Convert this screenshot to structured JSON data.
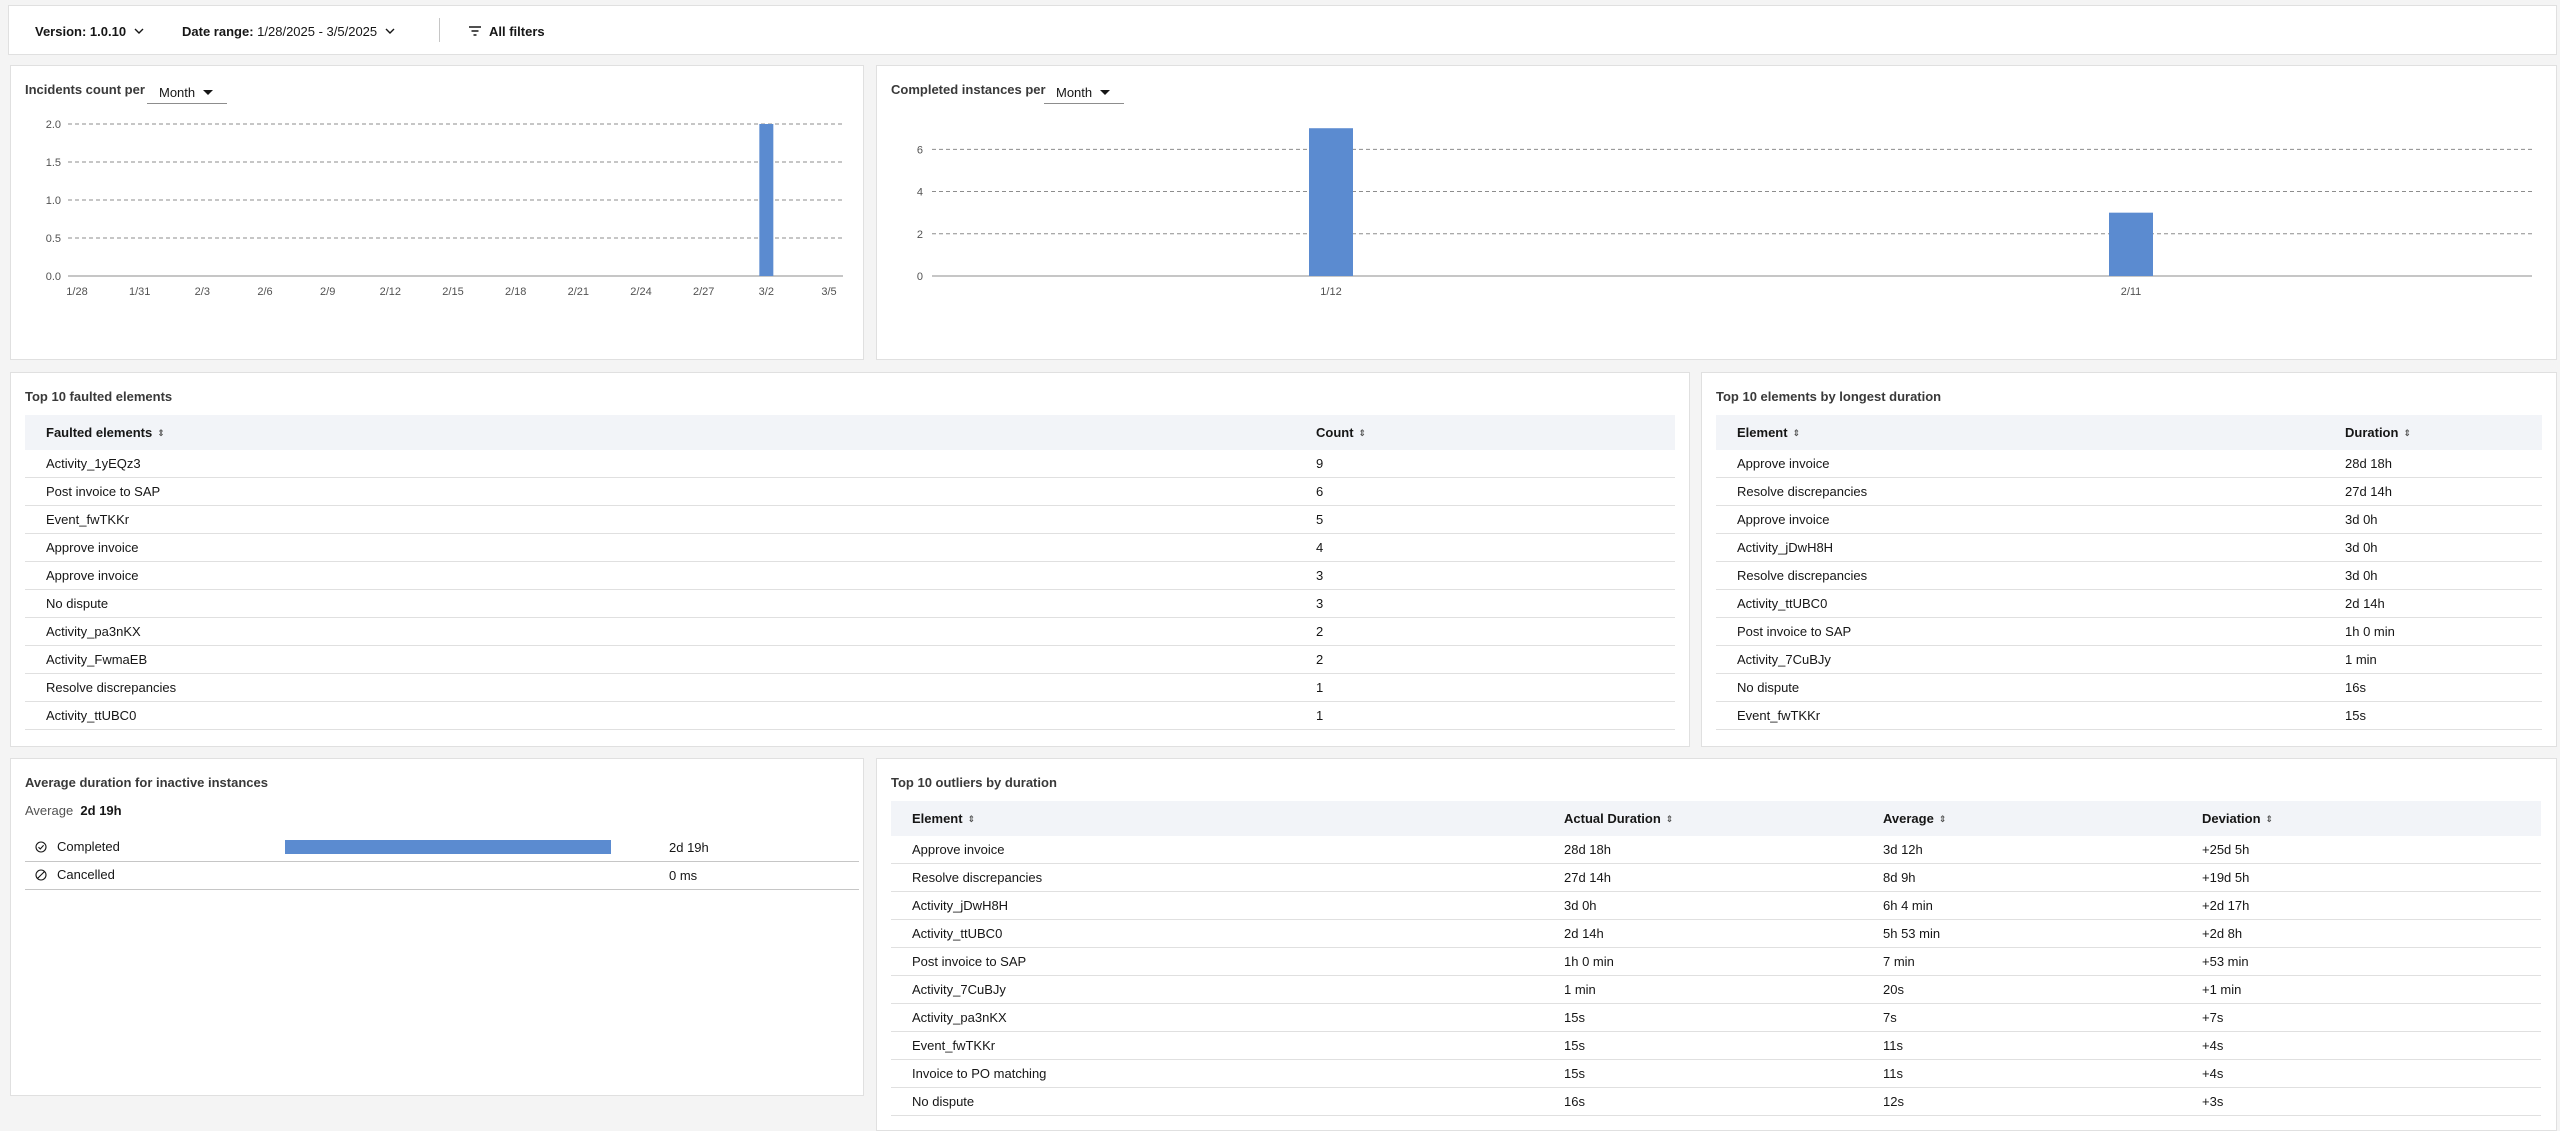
{
  "filters": {
    "version_label": "Version:",
    "version_value": "1.0.10",
    "date_label": "Date range:",
    "date_value": "1/28/2025 - 3/5/2025",
    "all_filters": "All filters"
  },
  "incidents": {
    "title": "Incidents count per",
    "period": "Month",
    "chart_data": {
      "type": "bar",
      "x_ticks": [
        "1/28",
        "1/31",
        "2/3",
        "2/6",
        "2/9",
        "2/12",
        "2/15",
        "2/18",
        "2/21",
        "2/24",
        "2/27",
        "3/2",
        "3/5"
      ],
      "y_ticks": [
        "2.0",
        "1.5",
        "1.0",
        "0.5",
        "0.0"
      ],
      "ylim": [
        0,
        2
      ],
      "bars": [
        {
          "x": "3/2",
          "value": 2
        }
      ],
      "color": "#5b8bd0"
    }
  },
  "completed": {
    "title": "Completed instances per",
    "period": "Month",
    "chart_data": {
      "type": "bar",
      "categories": [
        "1/12",
        "2/11"
      ],
      "values": [
        7,
        3
      ],
      "y_ticks": [
        "6",
        "4",
        "2",
        "0"
      ],
      "ylim": [
        0,
        7.2
      ],
      "color": "#5b8bd0"
    }
  },
  "faulted": {
    "title": "Top 10 faulted elements",
    "headers": [
      "Faulted elements",
      "Count"
    ],
    "rows": [
      [
        "Activity_1yEQz3",
        "9"
      ],
      [
        "Post invoice to SAP",
        "6"
      ],
      [
        "Event_fwTKKr",
        "5"
      ],
      [
        "Approve invoice",
        "4"
      ],
      [
        "Approve invoice",
        "3"
      ],
      [
        "No dispute",
        "3"
      ],
      [
        "Activity_pa3nKX",
        "2"
      ],
      [
        "Activity_FwmaEB",
        "2"
      ],
      [
        "Resolve discrepancies",
        "1"
      ],
      [
        "Activity_ttUBC0",
        "1"
      ]
    ]
  },
  "longest": {
    "title": "Top 10 elements by longest duration",
    "headers": [
      "Element",
      "Duration"
    ],
    "rows": [
      [
        "Approve invoice",
        "28d 18h"
      ],
      [
        "Resolve discrepancies",
        "27d 14h"
      ],
      [
        "Approve invoice",
        "3d 0h"
      ],
      [
        "Activity_jDwH8H",
        "3d 0h"
      ],
      [
        "Resolve discrepancies",
        "3d 0h"
      ],
      [
        "Activity_ttUBC0",
        "2d 14h"
      ],
      [
        "Post invoice to SAP",
        "1h 0 min"
      ],
      [
        "Activity_7CuBJy",
        "1 min"
      ],
      [
        "No dispute",
        "16s"
      ],
      [
        "Event_fwTKKr",
        "15s"
      ]
    ]
  },
  "inactive": {
    "title": "Average duration for inactive instances",
    "avg_label": "Average",
    "avg_value": "2d 19h",
    "rows": [
      {
        "name": "Completed",
        "value": "2d 19h",
        "fraction": 1.0,
        "icon": "completed-icon"
      },
      {
        "name": "Cancelled",
        "value": "0 ms",
        "fraction": 0,
        "icon": "cancelled-icon"
      }
    ]
  },
  "outliers": {
    "title": "Top 10 outliers by duration",
    "headers": [
      "Element",
      "Actual Duration",
      "Average",
      "Deviation"
    ],
    "rows": [
      [
        "Approve invoice",
        "28d 18h",
        "3d 12h",
        "+25d 5h"
      ],
      [
        "Resolve discrepancies",
        "27d 14h",
        "8d 9h",
        "+19d 5h"
      ],
      [
        "Activity_jDwH8H",
        "3d 0h",
        "6h 4 min",
        "+2d 17h"
      ],
      [
        "Activity_ttUBC0",
        "2d 14h",
        "5h 53 min",
        "+2d 8h"
      ],
      [
        "Post invoice to SAP",
        "1h 0 min",
        "7 min",
        "+53 min"
      ],
      [
        "Activity_7CuBJy",
        "1 min",
        "20s",
        "+1 min"
      ],
      [
        "Activity_pa3nKX",
        "15s",
        "7s",
        "+7s"
      ],
      [
        "Event_fwTKKr",
        "15s",
        "11s",
        "+4s"
      ],
      [
        "Invoice to PO matching",
        "15s",
        "11s",
        "+4s"
      ],
      [
        "No dispute",
        "16s",
        "12s",
        "+3s"
      ]
    ]
  }
}
